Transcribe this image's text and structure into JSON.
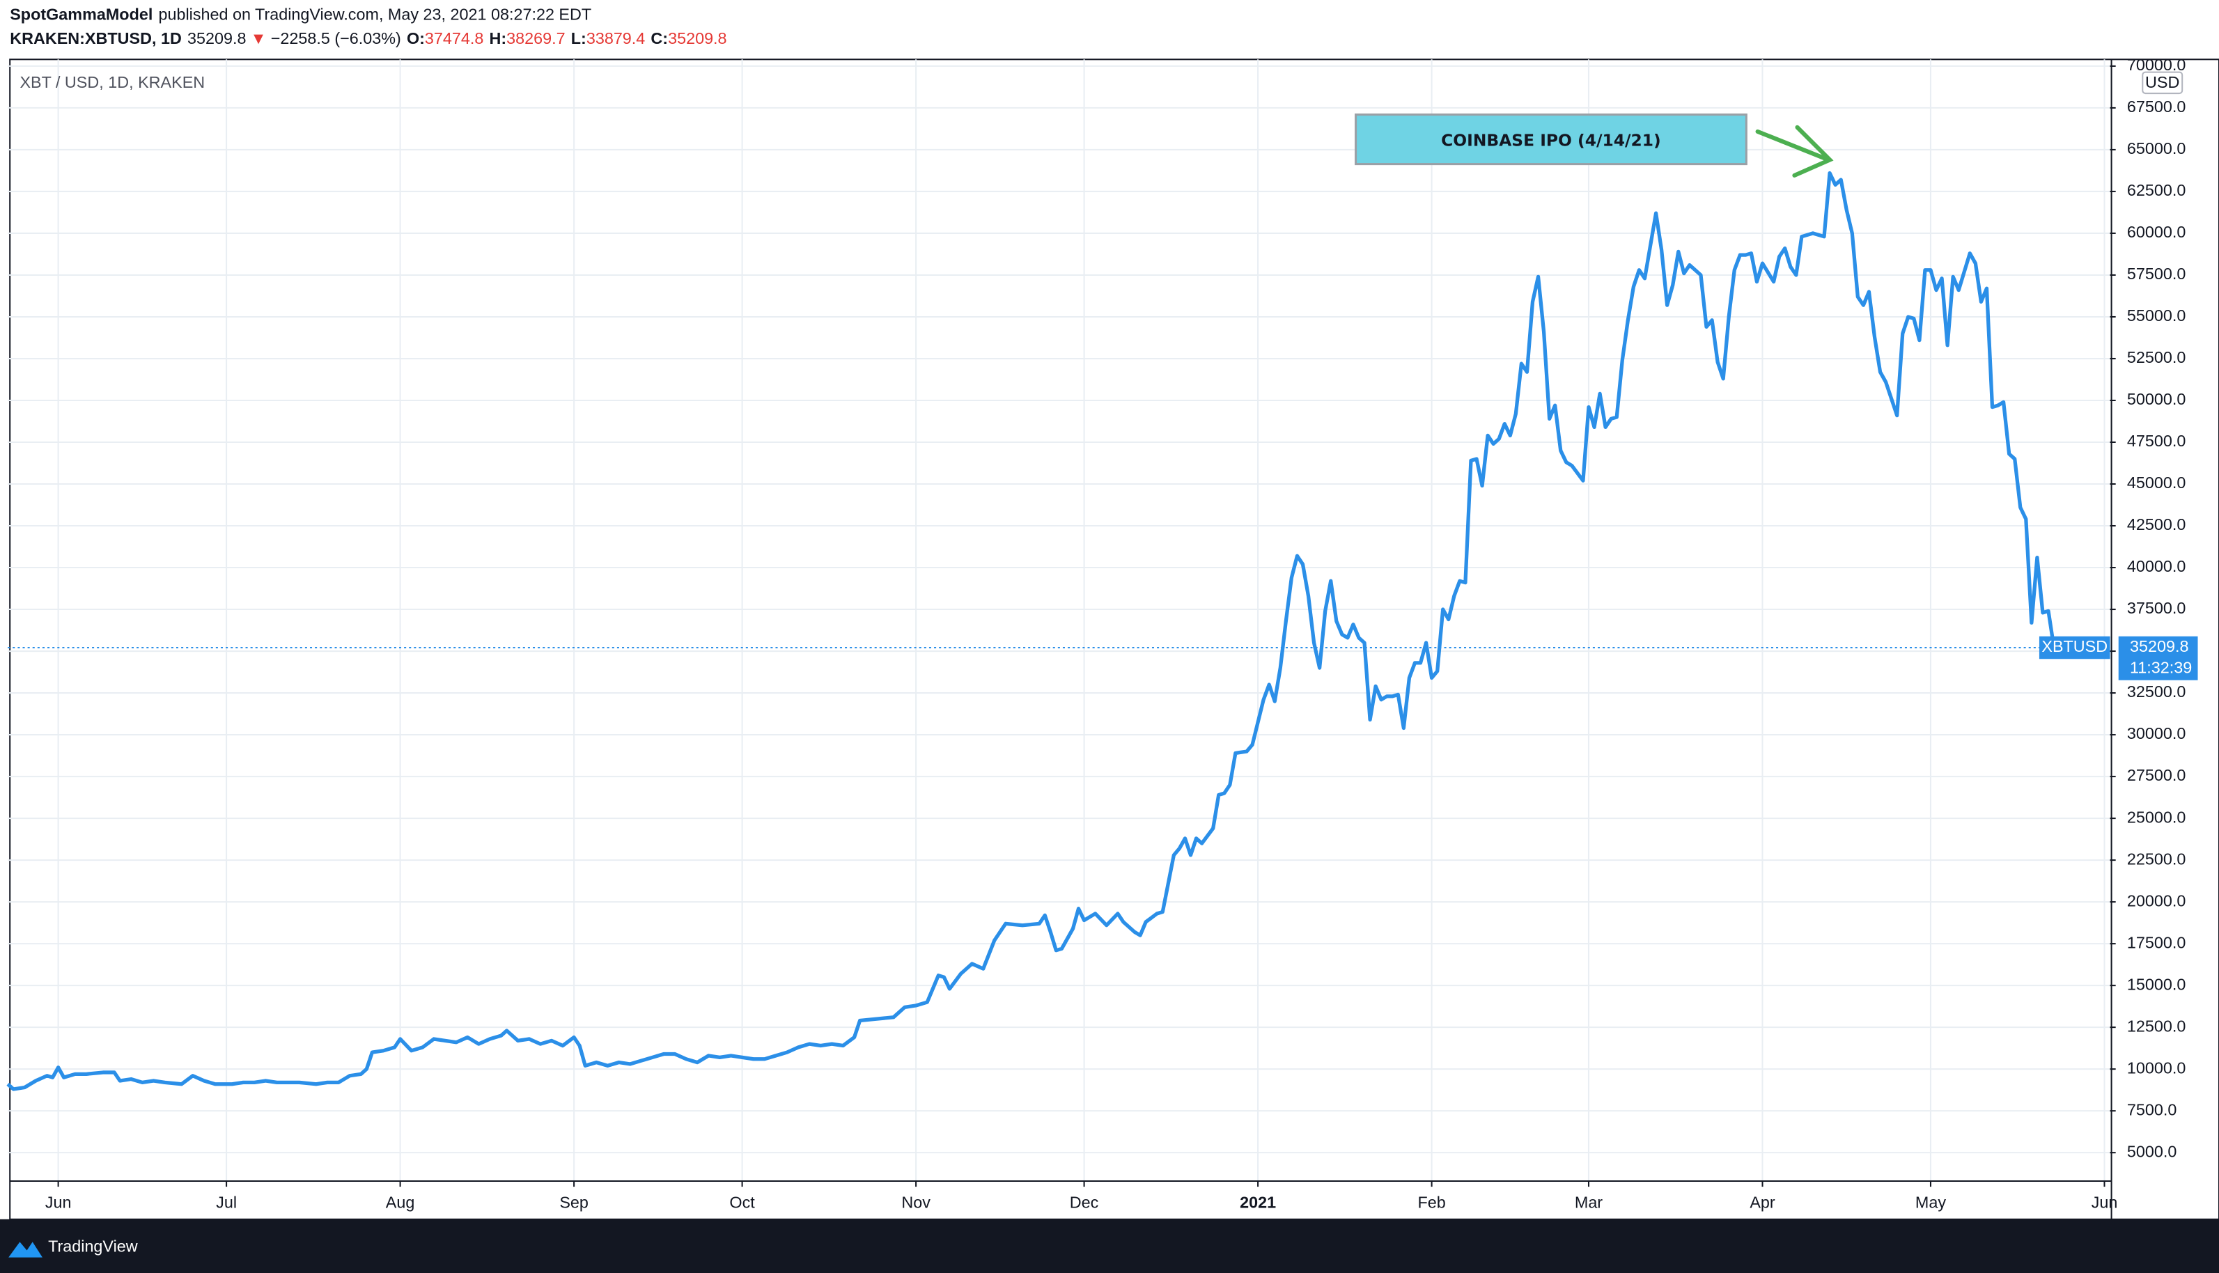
{
  "header": {
    "author": "SpotGammaModel",
    "published": "published on TradingView.com, May 23, 2021 08:27:22 EDT",
    "symbol": "KRAKEN:XBTUSD, 1D",
    "last": "35209.8",
    "direction": "▼",
    "change": "−2258.5 (−6.03%)",
    "ohlc": [
      {
        "label": "O:",
        "value": "37474.8"
      },
      {
        "label": "H:",
        "value": "38269.7"
      },
      {
        "label": "L:",
        "value": "33879.4"
      },
      {
        "label": "C:",
        "value": "35209.8"
      }
    ]
  },
  "chart_data": {
    "type": "line",
    "legend_label": "XBT / USD, 1D, KRAKEN",
    "currency": "USD",
    "countdown": "11:32:39",
    "annotation": "COINBASE IPO (4/14/21)",
    "grid": true,
    "x": [
      0,
      1,
      3,
      5,
      7,
      8,
      9,
      10,
      12,
      14,
      17,
      19,
      20,
      22,
      24,
      26,
      28,
      31,
      33,
      35,
      37,
      40,
      42,
      44,
      46,
      48,
      50,
      52,
      55,
      57,
      59,
      61,
      63,
      64,
      65,
      67,
      69,
      70,
      72,
      74,
      76,
      78,
      80,
      82,
      84,
      86,
      88,
      89,
      91,
      93,
      95,
      97,
      99,
      101,
      102,
      103,
      105,
      107,
      109,
      111,
      113,
      115,
      117,
      119,
      121,
      123,
      125,
      127,
      129,
      131,
      133,
      135,
      137,
      139,
      141,
      143,
      145,
      147,
      149,
      151,
      152,
      155,
      158,
      160,
      162,
      164,
      166,
      167,
      168,
      170,
      172,
      174,
      176,
      178,
      181,
      184,
      185,
      186,
      187,
      188,
      190,
      191,
      192,
      194,
      196,
      198,
      199,
      201,
      202,
      203,
      205,
      206,
      208,
      209,
      210,
      211,
      212,
      213,
      215,
      216,
      217,
      218,
      219,
      221,
      222,
      224,
      225,
      226,
      227,
      228,
      229,
      230,
      231,
      232,
      233,
      234,
      235,
      236,
      237,
      238,
      239,
      240,
      241,
      242,
      243,
      244,
      245,
      246,
      247,
      248,
      249,
      250,
      251,
      252,
      253,
      254,
      255,
      256,
      257,
      258,
      259,
      260,
      261,
      262,
      263,
      264,
      265,
      266,
      267,
      268,
      269,
      270,
      271,
      272,
      273,
      274,
      275,
      276,
      277,
      278,
      279,
      281,
      282,
      283,
      284,
      285,
      286,
      287,
      288,
      289,
      290,
      291,
      292,
      294,
      295,
      296,
      297,
      298,
      299,
      300,
      302,
      303,
      304,
      305,
      306,
      307,
      308,
      309,
      310,
      311,
      312,
      313,
      315,
      316,
      317,
      318,
      319,
      320,
      322,
      324,
      325,
      326,
      327,
      328,
      329,
      330,
      331,
      332,
      333,
      334,
      335,
      336,
      337,
      338,
      339,
      340,
      341,
      342,
      343,
      344,
      345,
      346,
      347,
      348,
      349,
      350,
      351,
      352,
      353,
      354,
      355,
      356,
      357,
      358,
      359,
      360,
      361,
      362,
      363,
      364,
      365
    ],
    "series": [
      {
        "name": "XBTUSD",
        "color": "#2b8fe8",
        "values": [
          9100,
          8800,
          8900,
          9300,
          9600,
          9500,
          10100,
          9500,
          9700,
          9700,
          9800,
          9800,
          9300,
          9400,
          9200,
          9300,
          9200,
          9100,
          9600,
          9300,
          9100,
          9100,
          9200,
          9200,
          9300,
          9200,
          9200,
          9200,
          9100,
          9200,
          9200,
          9600,
          9700,
          10000,
          11000,
          11100,
          11300,
          11800,
          11100,
          11300,
          11800,
          11700,
          11600,
          11900,
          11500,
          11800,
          12000,
          12300,
          11700,
          11800,
          11500,
          11700,
          11400,
          11900,
          11400,
          10200,
          10400,
          10200,
          10400,
          10300,
          10500,
          10700,
          10900,
          10900,
          10600,
          10400,
          10800,
          10700,
          10800,
          10700,
          10600,
          10600,
          10800,
          11000,
          11300,
          11500,
          11400,
          11500,
          11400,
          11900,
          12900,
          13000,
          13100,
          13700,
          13800,
          14000,
          15600,
          15500,
          14800,
          15700,
          16300,
          16000,
          17700,
          18700,
          18600,
          18700,
          19200,
          18200,
          17100,
          17200,
          18400,
          19600,
          18900,
          19300,
          18600,
          19300,
          18800,
          18200,
          18000,
          18800,
          19300,
          19400,
          22800,
          23200,
          23800,
          22800,
          23800,
          23500,
          24400,
          26400,
          26500,
          27000,
          28900,
          29000,
          29400,
          32100,
          33000,
          32000,
          34000,
          36800,
          39400,
          40700,
          40200,
          38300,
          35500,
          34000,
          37400,
          39200,
          36800,
          36000,
          35800,
          36600,
          35800,
          35500,
          30900,
          32900,
          32100,
          32300,
          32300,
          32400,
          30400,
          33400,
          34300,
          34300,
          35500,
          33400,
          33800,
          37500,
          36900,
          38300,
          39200,
          39100,
          46400,
          46500,
          44900,
          47900,
          47400,
          47700,
          48600,
          47900,
          49200,
          52200,
          51700,
          55900,
          57400,
          54100,
          48900,
          49700,
          47000,
          46300,
          46100,
          45200,
          49600,
          48400,
          50400,
          48400,
          48900,
          49000,
          52400,
          54800,
          56800,
          57800,
          57300,
          61200,
          59000,
          55700,
          56900,
          58900,
          57600,
          58100,
          57500,
          54400,
          54800,
          52300,
          51300,
          55000,
          57800,
          58700,
          58700,
          58800,
          57100,
          58200,
          57100,
          58600,
          59100,
          58000,
          57500,
          59800,
          60000,
          59800,
          63600,
          62900,
          63200,
          61400,
          60000,
          56200,
          55700,
          56500,
          53800,
          51700,
          51100,
          50100,
          49100,
          54000,
          55000,
          54900,
          53600,
          57800,
          57800,
          56600,
          57300,
          53300,
          57400,
          56600,
          57700,
          58800,
          58200,
          55900,
          56700,
          49600,
          49700,
          49900,
          46800,
          46500,
          43600,
          42900,
          36700,
          40600,
          37300,
          37400,
          35209.8
        ]
      }
    ],
    "xlim": [
      0,
      375
    ],
    "xticks": [
      {
        "value": 9,
        "label": "Jun"
      },
      {
        "value": 39,
        "label": "Jul"
      },
      {
        "value": 70,
        "label": "Aug"
      },
      {
        "value": 101,
        "label": "Sep"
      },
      {
        "value": 131,
        "label": "Oct"
      },
      {
        "value": 162,
        "label": "Nov"
      },
      {
        "value": 192,
        "label": "Dec"
      },
      {
        "value": 223,
        "label": "2021"
      },
      {
        "value": 254,
        "label": "Feb"
      },
      {
        "value": 282,
        "label": "Mar"
      },
      {
        "value": 313,
        "label": "Apr"
      },
      {
        "value": 343,
        "label": "May"
      },
      {
        "value": 374,
        "label": "Jun"
      }
    ],
    "ylim": [
      3300,
      70400
    ],
    "yticks": [
      {
        "value": 5000,
        "label": "5000.0"
      },
      {
        "value": 7500,
        "label": "7500.0"
      },
      {
        "value": 10000,
        "label": "10000.0"
      },
      {
        "value": 12500,
        "label": "12500.0"
      },
      {
        "value": 15000,
        "label": "15000.0"
      },
      {
        "value": 17500,
        "label": "17500.0"
      },
      {
        "value": 20000,
        "label": "20000.0"
      },
      {
        "value": 22500,
        "label": "22500.0"
      },
      {
        "value": 25000,
        "label": "25000.0"
      },
      {
        "value": 27500,
        "label": "27500.0"
      },
      {
        "value": 30000,
        "label": "30000.0"
      },
      {
        "value": 32500,
        "label": "32500.0"
      },
      {
        "value": 35000,
        "label": "35000.0"
      },
      {
        "value": 37500,
        "label": "37500.0"
      },
      {
        "value": 40000,
        "label": "40000.0"
      },
      {
        "value": 42500,
        "label": "42500.0"
      },
      {
        "value": 45000,
        "label": "45000.0"
      },
      {
        "value": 47500,
        "label": "47500.0"
      },
      {
        "value": 50000,
        "label": "50000.0"
      },
      {
        "value": 52500,
        "label": "52500.0"
      },
      {
        "value": 55000,
        "label": "55000.0"
      },
      {
        "value": 57500,
        "label": "57500.0"
      },
      {
        "value": 60000,
        "label": "60000.0"
      },
      {
        "value": 62500,
        "label": "62500.0"
      },
      {
        "value": 65000,
        "label": "65000.0"
      },
      {
        "value": 67500,
        "label": "67500.0"
      },
      {
        "value": 70000,
        "label": "70000.0"
      }
    ]
  },
  "footer": {
    "brand": "TradingView"
  }
}
